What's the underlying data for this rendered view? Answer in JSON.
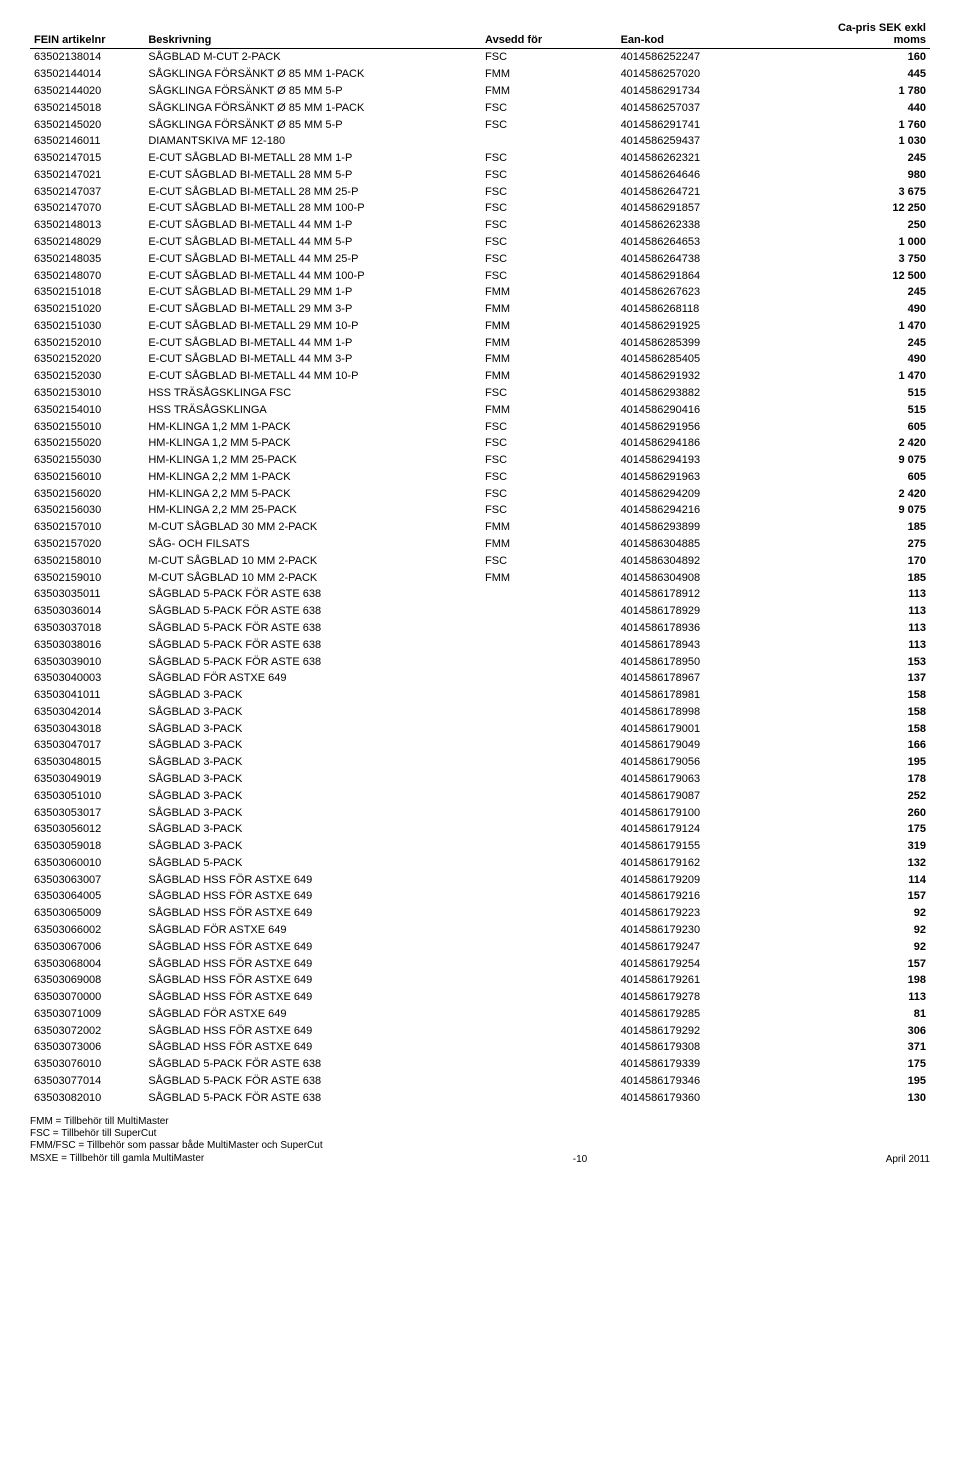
{
  "header": {
    "col0": "FEIN artikelnr",
    "col1": "Beskrivning",
    "col2": "Avsedd för",
    "col3": "Ean-kod",
    "col4_line1": "Ca-pris SEK exkl",
    "col4_line2": "moms"
  },
  "rows": [
    [
      "63502138014",
      "SÅGBLAD M-CUT   2-PACK",
      "FSC",
      "4014586252247",
      "160"
    ],
    [
      "63502144014",
      "SÅGKLINGA FÖRSÄNKT Ø  85 MM 1-PACK",
      "FMM",
      "4014586257020",
      "445"
    ],
    [
      "63502144020",
      "SÅGKLINGA FÖRSÄNKT Ø 85 MM 5-P",
      "FMM",
      "4014586291734",
      "1 780"
    ],
    [
      "63502145018",
      "SÅGKLINGA FÖRSÄNKT Ø 85 MM 1-PACK",
      "FSC",
      "4014586257037",
      "440"
    ],
    [
      "63502145020",
      "SÅGKLINGA FÖRSÄNKT Ø 85 MM 5-P",
      "FSC",
      "4014586291741",
      "1 760"
    ],
    [
      "63502146011",
      "DIAMANTSKIVA MF 12-180",
      "",
      "4014586259437",
      "1 030"
    ],
    [
      "63502147015",
      "E-CUT SÅGBLAD BI-METALL  28 MM  1-P",
      "FSC",
      "4014586262321",
      "245"
    ],
    [
      "63502147021",
      "E-CUT SÅGBLAD BI-METALL  28 MM  5-P",
      "FSC",
      "4014586264646",
      "980"
    ],
    [
      "63502147037",
      "E-CUT SÅGBLAD BI-METALL  28 MM 25-P",
      "FSC",
      "4014586264721",
      "3 675"
    ],
    [
      "63502147070",
      "E-CUT SÅGBLAD BI-METALL 28 MM 100-P",
      "FSC",
      "4014586291857",
      "12 250"
    ],
    [
      "63502148013",
      "E-CUT SÅGBLAD BI-METALL  44 MM  1-P",
      "FSC",
      "4014586262338",
      "250"
    ],
    [
      "63502148029",
      "E-CUT SÅGBLAD BI-METALL  44 MM  5-P",
      "FSC",
      "4014586264653",
      "1 000"
    ],
    [
      "63502148035",
      "E-CUT SÅGBLAD BI-METALL  44 MM 25-P",
      "FSC",
      "4014586264738",
      "3 750"
    ],
    [
      "63502148070",
      "E-CUT SÅGBLAD BI-METALL 44 MM 100-P",
      "FSC",
      "4014586291864",
      "12 500"
    ],
    [
      "63502151018",
      "E-CUT SÅGBLAD BI-METALL  29 MM  1-P",
      "FMM",
      "4014586267623",
      "245"
    ],
    [
      "63502151020",
      "E-CUT SÅGBLAD BI-METALL  29 MM  3-P",
      "FMM",
      "4014586268118",
      "490"
    ],
    [
      "63502151030",
      "E-CUT SÅGBLAD BI-METALL 29 MM 10-P",
      "FMM",
      "4014586291925",
      "1 470"
    ],
    [
      "63502152010",
      "E-CUT SÅGBLAD BI-METALL  44 MM  1-P",
      "FMM",
      "4014586285399",
      "245"
    ],
    [
      "63502152020",
      "E-CUT SÅGBLAD BI-METALL  44 MM  3-P",
      "FMM",
      "4014586285405",
      "490"
    ],
    [
      "63502152030",
      "E-CUT SÅGBLAD BI-METALL 44 MM 10-P",
      "FMM",
      "4014586291932",
      "1 470"
    ],
    [
      "63502153010",
      "HSS TRÄSÅGSKLINGA FSC",
      "FSC",
      "4014586293882",
      "515"
    ],
    [
      "63502154010",
      "HSS TRÄSÅGSKLINGA",
      "FMM",
      "4014586290416",
      "515"
    ],
    [
      "63502155010",
      "HM-KLINGA 1,2 MM  1-PACK",
      "FSC",
      "4014586291956",
      "605"
    ],
    [
      "63502155020",
      "HM-KLINGA 1,2 MM  5-PACK",
      "FSC",
      "4014586294186",
      "2 420"
    ],
    [
      "63502155030",
      "HM-KLINGA 1,2 MM 25-PACK",
      "FSC",
      "4014586294193",
      "9 075"
    ],
    [
      "63502156010",
      "HM-KLINGA 2,2 MM  1-PACK",
      "FSC",
      "4014586291963",
      "605"
    ],
    [
      "63502156020",
      "HM-KLINGA 2,2 MM  5-PACK",
      "FSC",
      "4014586294209",
      "2 420"
    ],
    [
      "63502156030",
      "HM-KLINGA 2,2 MM 25-PACK",
      "FSC",
      "4014586294216",
      "9 075"
    ],
    [
      "63502157010",
      "M-CUT SÅGBLAD 30 MM  2-PACK",
      "FMM",
      "4014586293899",
      "185"
    ],
    [
      "63502157020",
      "SÅG- OCH FILSATS",
      "FMM",
      "4014586304885",
      "275"
    ],
    [
      "63502158010",
      "M-CUT SÅGBLAD 10 MM  2-PACK",
      "FSC",
      "4014586304892",
      "170"
    ],
    [
      "63502159010",
      "M-CUT SÅGBLAD 10 MM  2-PACK",
      "FMM",
      "4014586304908",
      "185"
    ],
    [
      "63503035011",
      "SÅGBLAD 5-PACK FÖR ASTE 638",
      "",
      "4014586178912",
      "113"
    ],
    [
      "63503036014",
      "SÅGBLAD 5-PACK FÖR ASTE 638",
      "",
      "4014586178929",
      "113"
    ],
    [
      "63503037018",
      "SÅGBLAD 5-PACK FÖR ASTE 638",
      "",
      "4014586178936",
      "113"
    ],
    [
      "63503038016",
      "SÅGBLAD 5-PACK FÖR ASTE 638",
      "",
      "4014586178943",
      "113"
    ],
    [
      "63503039010",
      "SÅGBLAD 5-PACK FÖR ASTE 638",
      "",
      "4014586178950",
      "153"
    ],
    [
      "63503040003",
      "SÅGBLAD FÖR ASTXE 649",
      "",
      "4014586178967",
      "137"
    ],
    [
      "63503041011",
      "SÅGBLAD 3-PACK",
      "",
      "4014586178981",
      "158"
    ],
    [
      "63503042014",
      "SÅGBLAD 3-PACK",
      "",
      "4014586178998",
      "158"
    ],
    [
      "63503043018",
      "SÅGBLAD 3-PACK",
      "",
      "4014586179001",
      "158"
    ],
    [
      "63503047017",
      "SÅGBLAD 3-PACK",
      "",
      "4014586179049",
      "166"
    ],
    [
      "63503048015",
      "SÅGBLAD 3-PACK",
      "",
      "4014586179056",
      "195"
    ],
    [
      "63503049019",
      "SÅGBLAD 3-PACK",
      "",
      "4014586179063",
      "178"
    ],
    [
      "63503051010",
      "SÅGBLAD 3-PACK",
      "",
      "4014586179087",
      "252"
    ],
    [
      "63503053017",
      "SÅGBLAD 3-PACK",
      "",
      "4014586179100",
      "260"
    ],
    [
      "63503056012",
      "SÅGBLAD 3-PACK",
      "",
      "4014586179124",
      "175"
    ],
    [
      "63503059018",
      "SÅGBLAD 3-PACK",
      "",
      "4014586179155",
      "319"
    ],
    [
      "63503060010",
      "SÅGBLAD 5-PACK",
      "",
      "4014586179162",
      "132"
    ],
    [
      "63503063007",
      "SÅGBLAD HSS FÖR ASTXE 649",
      "",
      "4014586179209",
      "114"
    ],
    [
      "63503064005",
      "SÅGBLAD HSS FÖR ASTXE 649",
      "",
      "4014586179216",
      "157"
    ],
    [
      "63503065009",
      "SÅGBLAD HSS FÖR ASTXE 649",
      "",
      "4014586179223",
      "92"
    ],
    [
      "63503066002",
      "SÅGBLAD FÖR ASTXE 649",
      "",
      "4014586179230",
      "92"
    ],
    [
      "63503067006",
      "SÅGBLAD HSS FÖR ASTXE 649",
      "",
      "4014586179247",
      "92"
    ],
    [
      "63503068004",
      "SÅGBLAD HSS FÖR ASTXE 649",
      "",
      "4014586179254",
      "157"
    ],
    [
      "63503069008",
      "SÅGBLAD HSS FÖR ASTXE 649",
      "",
      "4014586179261",
      "198"
    ],
    [
      "63503070000",
      "SÅGBLAD HSS FÖR ASTXE 649",
      "",
      "4014586179278",
      "113"
    ],
    [
      "63503071009",
      "SÅGBLAD FÖR ASTXE 649",
      "",
      "4014586179285",
      "81"
    ],
    [
      "63503072002",
      "SÅGBLAD HSS FÖR ASTXE 649",
      "",
      "4014586179292",
      "306"
    ],
    [
      "63503073006",
      "SÅGBLAD HSS FÖR ASTXE 649",
      "",
      "4014586179308",
      "371"
    ],
    [
      "63503076010",
      "SÅGBLAD 5-PACK FÖR ASTE 638",
      "",
      "4014586179339",
      "175"
    ],
    [
      "63503077014",
      "SÅGBLAD 5-PACK FÖR ASTE 638",
      "",
      "4014586179346",
      "195"
    ],
    [
      "63503082010",
      "SÅGBLAD 5-PACK FÖR ASTE 638",
      "",
      "4014586179360",
      "130"
    ]
  ],
  "footer": {
    "line1": "FMM = Tillbehör till MultiMaster",
    "line2": "FSC = Tillbehör till SuperCut",
    "line3": "FMM/FSC = Tillbehör som passar både MultiMaster och SuperCut",
    "line4": "MSXE = Tillbehör till gamla MultiMaster",
    "page": "-10",
    "date": "April 2011"
  }
}
